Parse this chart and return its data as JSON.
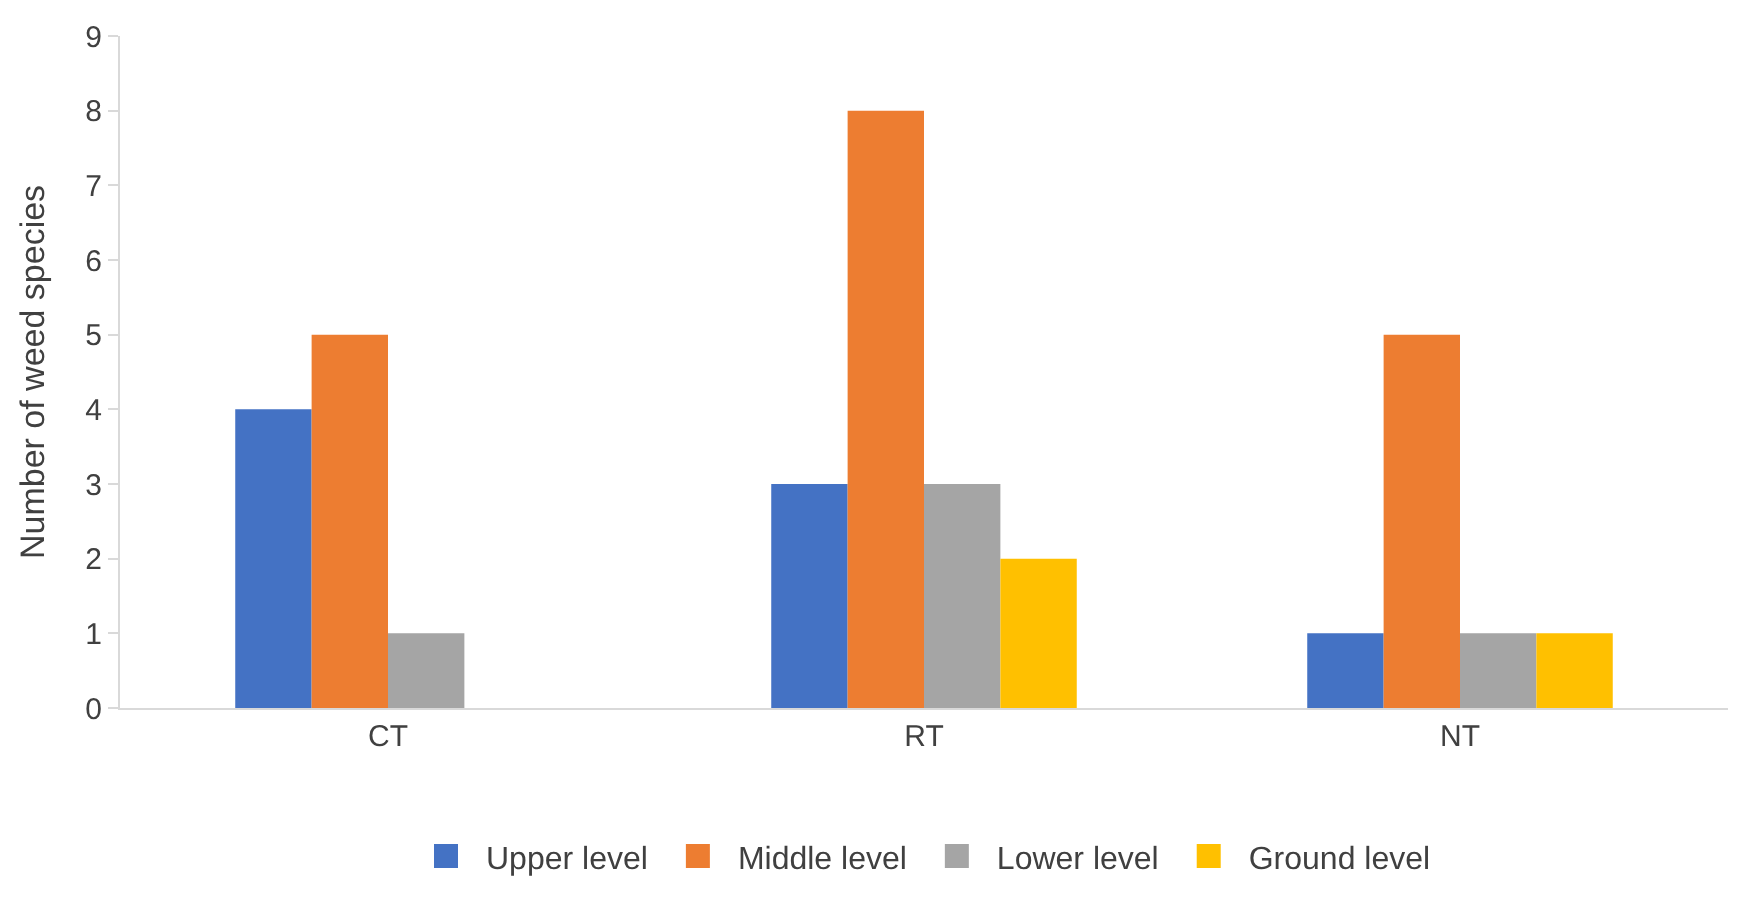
{
  "chart_data": {
    "type": "bar",
    "ylabel": "Number of weed species",
    "categories": [
      "CT",
      "RT",
      "NT"
    ],
    "series": [
      {
        "name": "Upper level",
        "color": "#4472c4",
        "values": [
          4,
          3,
          1
        ]
      },
      {
        "name": "Middle level",
        "color": "#ed7d31",
        "values": [
          5,
          8,
          5
        ]
      },
      {
        "name": "Lower level",
        "color": "#a5a5a5",
        "values": [
          1,
          3,
          1
        ]
      },
      {
        "name": "Ground level",
        "color": "#ffc000",
        "values": [
          0,
          2,
          1
        ]
      }
    ],
    "ylim": [
      0,
      9
    ],
    "yticks": [
      0,
      1,
      2,
      3,
      4,
      5,
      6,
      7,
      8,
      9
    ],
    "grid": false,
    "legend": "bottom"
  }
}
